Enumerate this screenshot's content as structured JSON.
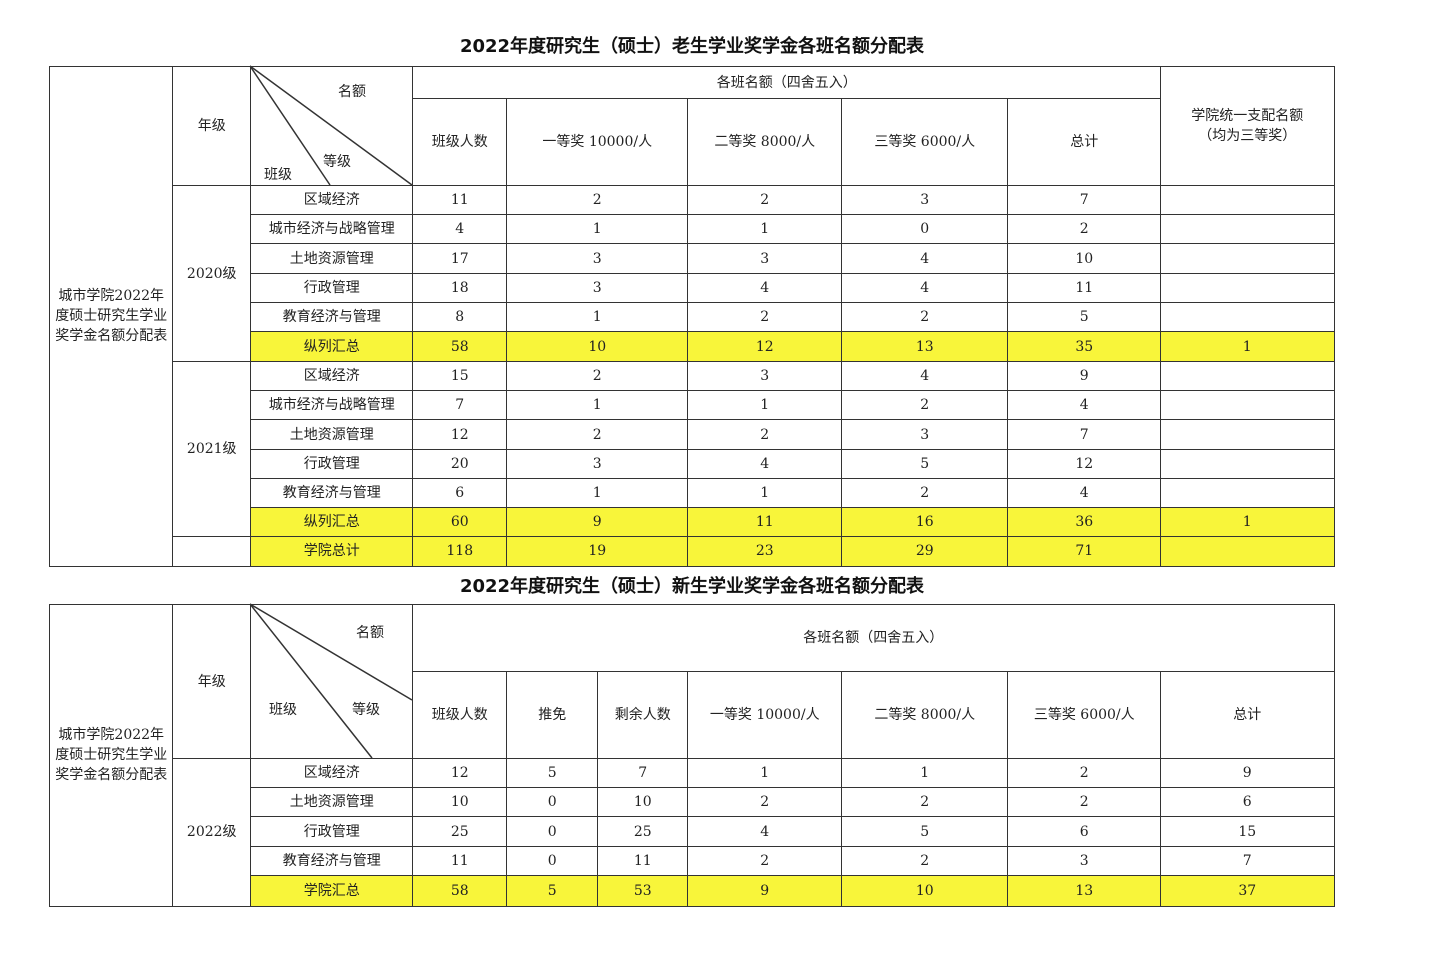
{
  "colors": {
    "highlight": "#f8f53a",
    "border": "#333333"
  },
  "table_old": {
    "title": "2022年度研究生（硕士）老生学业奖学金各班名额分配表",
    "side_label": "城市学院2022年度硕士研究生学业奖学金名额分配表",
    "grade_header": "年级",
    "diag_quota": "名额",
    "diag_level": "等级",
    "diag_class": "班级",
    "group_header": "各班名额（四舍五入）",
    "columns": [
      "班级人数",
      "一等奖 10000/人",
      "二等奖 8000/人",
      "三等奖 6000/人",
      "总计"
    ],
    "college_header": "学院统一支配名额（均为三等奖）",
    "groups": [
      {
        "grade": "2020级",
        "rows": [
          [
            "区域经济",
            "11",
            "2",
            "2",
            "3",
            "7",
            ""
          ],
          [
            "城市经济与战略管理",
            "4",
            "1",
            "1",
            "0",
            "2",
            ""
          ],
          [
            "土地资源管理",
            "17",
            "3",
            "3",
            "4",
            "10",
            ""
          ],
          [
            "行政管理",
            "18",
            "3",
            "4",
            "4",
            "11",
            ""
          ],
          [
            "教育经济与管理",
            "8",
            "1",
            "2",
            "2",
            "5",
            ""
          ],
          [
            "纵列汇总",
            "58",
            "10",
            "12",
            "13",
            "35",
            "1"
          ]
        ]
      },
      {
        "grade": "2021级",
        "rows": [
          [
            "区域经济",
            "15",
            "2",
            "3",
            "4",
            "9",
            ""
          ],
          [
            "城市经济与战略管理",
            "7",
            "1",
            "1",
            "2",
            "4",
            ""
          ],
          [
            "土地资源管理",
            "12",
            "2",
            "2",
            "3",
            "7",
            ""
          ],
          [
            "行政管理",
            "20",
            "3",
            "4",
            "5",
            "12",
            ""
          ],
          [
            "教育经济与管理",
            "6",
            "1",
            "1",
            "2",
            "4",
            ""
          ],
          [
            "纵列汇总",
            "60",
            "9",
            "11",
            "16",
            "36",
            "1"
          ]
        ]
      },
      {
        "grade": "",
        "rows": [
          [
            "学院总计",
            "118",
            "19",
            "23",
            "29",
            "71",
            ""
          ]
        ]
      }
    ]
  },
  "table_new": {
    "title": "2022年度研究生（硕士）新生学业奖学金各班名额分配表",
    "side_label": "城市学院2022年度硕士研究生学业奖学金名额分配表",
    "grade_header": "年级",
    "diag_quota": "名额",
    "diag_level": "等级",
    "diag_class": "班级",
    "group_header": "各班名额（四舍五入）",
    "columns": [
      "班级人数",
      "推免",
      "剩余人数",
      "一等奖 10000/人",
      "二等奖 8000/人",
      "三等奖 6000/人",
      "总计"
    ],
    "grade": "2022级",
    "rows": [
      [
        "区域经济",
        "12",
        "5",
        "7",
        "1",
        "1",
        "2",
        "9"
      ],
      [
        "土地资源管理",
        "10",
        "0",
        "10",
        "2",
        "2",
        "2",
        "6"
      ],
      [
        "行政管理",
        "25",
        "0",
        "25",
        "4",
        "5",
        "6",
        "15"
      ],
      [
        "教育经济与管理",
        "11",
        "0",
        "11",
        "2",
        "2",
        "3",
        "7"
      ],
      [
        "学院汇总",
        "58",
        "5",
        "53",
        "9",
        "10",
        "13",
        "37"
      ]
    ]
  }
}
